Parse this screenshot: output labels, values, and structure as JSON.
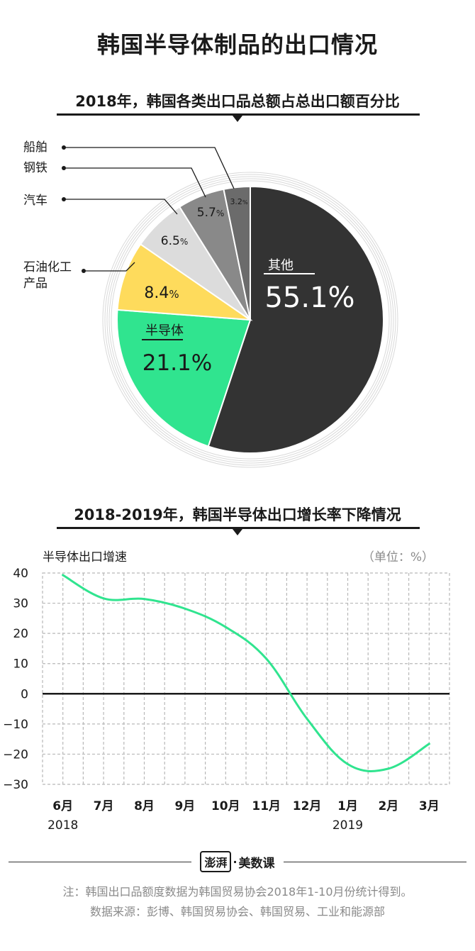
{
  "title": "韩国半导体制品的出口情况",
  "chart_data": [
    {
      "type": "pie",
      "title": "2018年，韩国各类出口品总额占总出口额百分比",
      "slices": [
        {
          "label": "其他",
          "value": 55.1,
          "value_text": "55.1",
          "color": "#333333"
        },
        {
          "label": "半导体",
          "value": 21.1,
          "value_text": "21.1",
          "color": "#30e48f"
        },
        {
          "label": "石油化工产品",
          "value": 8.4,
          "value_text": "8.4",
          "color": "#fedb5c"
        },
        {
          "label": "汽车",
          "value": 6.5,
          "value_text": "6.5",
          "color": "#dcdcdc"
        },
        {
          "label": "钢铁",
          "value": 5.7,
          "value_text": "5.7",
          "color": "#898989"
        },
        {
          "label": "船舶",
          "value": 3.2,
          "value_text": "3.2",
          "color": "#6b6b6b"
        }
      ],
      "percent_sign": "%"
    },
    {
      "type": "line",
      "title": "2018-2019年，韩国半导体出口增长率下降情况",
      "ylabel": "半导体出口增速",
      "unit_label": "（单位：%）",
      "ylim": [
        -30,
        40
      ],
      "yticks": [
        40,
        30,
        20,
        10,
        0,
        -10,
        -20,
        -30
      ],
      "ytick_labels": [
        "40",
        "30",
        "20",
        "10",
        "0",
        "−10",
        "−20",
        "−30"
      ],
      "categories": [
        "6月",
        "7月",
        "8月",
        "9月",
        "10月",
        "11月",
        "12月",
        "1月",
        "2月",
        "3月"
      ],
      "year_labels": [
        {
          "label": "2018",
          "category_index": 0
        },
        {
          "label": "2019",
          "category_index": 7
        }
      ],
      "values": [
        39.3,
        31.6,
        31.4,
        28.2,
        22.1,
        11.6,
        -8.3,
        -23.3,
        -24.8,
        -16.6
      ],
      "line_color": "#30e48f",
      "grid": true
    }
  ],
  "brand": {
    "seal": "澎湃",
    "separator": "·",
    "name": "美数课"
  },
  "notes": {
    "line1": "注：韩国出口品额度数据为韩国贸易协会2018年1-10月份统计得到。",
    "line2": "数据来源：彭博、韩国贸易协会、韩国贸易、工业和能源部"
  }
}
